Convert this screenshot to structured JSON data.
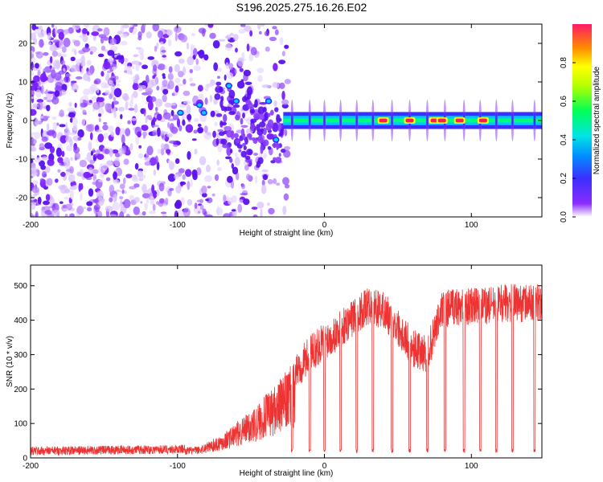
{
  "title": "S196.2025.275.16.26.E02",
  "colors": {
    "snr_line": "#ee3333",
    "spectrogram_low": "#c9a8ff",
    "spectrogram_mid": "#7a1fff",
    "spectrogram_high": "#ff1a5a"
  },
  "chart_data": [
    {
      "type": "heatmap",
      "name": "spectrogram",
      "title": "",
      "xlabel": "Height of straight line (km)",
      "ylabel": "Frequency (Hz)",
      "xlim": [
        -200,
        148
      ],
      "ylim": [
        -25,
        25
      ],
      "xticks": [
        -200,
        -100,
        0,
        100
      ],
      "xtick_labels": [
        "-200",
        "-100",
        "0",
        "100"
      ],
      "yticks": [
        -20,
        -10,
        0,
        10,
        20
      ],
      "ytick_labels": [
        "-20",
        "-10",
        "0",
        "10",
        "20"
      ],
      "description_values": {
        "noise_region_x": [
          -200,
          -30
        ],
        "signal_onset_x": -30,
        "tonal_frequency_hz": 0,
        "high_amplitude_segments_x": [
          40,
          58,
          75,
          80,
          92,
          108
        ]
      },
      "colorbar": {
        "label": "Normalized spectral amplitude",
        "range": [
          0,
          1
        ],
        "ticks": [
          0.0,
          0.2,
          0.4,
          0.6,
          0.8
        ],
        "tick_labels": [
          "0.0",
          "0.2",
          "0.4",
          "0.6",
          "0.8"
        ],
        "colormap": [
          "#ffffff",
          "#7a1fff",
          "#3b30ff",
          "#00e5ff",
          "#00ff66",
          "#ffff00",
          "#ff1a5a"
        ]
      }
    },
    {
      "type": "line",
      "name": "snr",
      "title": "",
      "xlabel": "Height of straight line (km)",
      "ylabel": "SNR (10 * v/v)",
      "xlim": [
        -200,
        148
      ],
      "ylim": [
        0,
        560
      ],
      "xticks": [
        -200,
        -100,
        0,
        100
      ],
      "xtick_labels": [
        "-200",
        "-100",
        "0",
        "100"
      ],
      "yticks": [
        0,
        100,
        200,
        300,
        400,
        500
      ],
      "ytick_labels": [
        "0",
        "100",
        "200",
        "300",
        "400",
        "500"
      ],
      "envelope_x": [
        -200,
        -100,
        -85,
        -70,
        -60,
        -50,
        -40,
        -30,
        -20,
        -10,
        0,
        10,
        20,
        30,
        40,
        50,
        60,
        70,
        80,
        90,
        100,
        110,
        120,
        130,
        140,
        148
      ],
      "envelope_y": [
        20,
        25,
        30,
        60,
        90,
        120,
        160,
        200,
        250,
        300,
        340,
        370,
        410,
        440,
        430,
        380,
        320,
        300,
        430,
        440,
        440,
        440,
        450,
        450,
        450,
        450
      ],
      "dropouts_x": [
        -22,
        -10,
        0,
        11,
        22,
        33,
        46,
        58,
        70,
        82,
        95,
        106,
        117,
        128,
        143
      ],
      "dropout_floor": 15
    }
  ]
}
